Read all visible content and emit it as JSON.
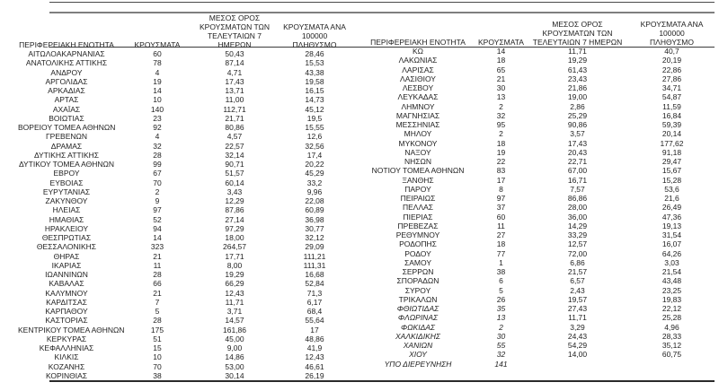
{
  "colors": {
    "text": "#1f1f1f",
    "rule_dark": "#3a3a3a",
    "rule_gray": "#7f7f7f"
  },
  "columns": [
    {
      "key": "region",
      "label": "ΠΕΡΙΦΕΡΕΙΑΚΗ ΕΝΟΤΗΤΑ"
    },
    {
      "key": "cases",
      "label": "ΚΡΟΥΣΜΑΤΑ"
    },
    {
      "key": "avg7",
      "label": "ΜΕΣΟΣ ΟΡΟΣ\nΚΡΟΥΣΜΑΤΩΝ ΤΩΝ\nΤΕΛΕΥΤΑΙΩΝ 7 ΗΜΕΡΩΝ"
    },
    {
      "key": "per100k",
      "label": "ΚΡΟΥΣΜΑΤΑ ΑΝΑ 100000\nΠΛΗΘΥΣΜΟ"
    }
  ],
  "tables": {
    "left": {
      "rows": [
        {
          "region": "ΑΙΤΩΛΟΑΚΑΡΝΑΝΙΑΣ",
          "cases": "60",
          "avg7": "50,43",
          "per100k": "28,46"
        },
        {
          "region": "ΑΝΑΤΟΛΙΚΗΣ ΑΤΤΙΚΗΣ",
          "cases": "78",
          "avg7": "87,14",
          "per100k": "15,53"
        },
        {
          "region": "ΑΝΔΡΟΥ",
          "cases": "4",
          "avg7": "4,71",
          "per100k": "43,38"
        },
        {
          "region": "ΑΡΓΟΛΙΔΑΣ",
          "cases": "19",
          "avg7": "17,43",
          "per100k": "19,58"
        },
        {
          "region": "ΑΡΚΑΔΙΑΣ",
          "cases": "14",
          "avg7": "13,71",
          "per100k": "16,15"
        },
        {
          "region": "ΑΡΤΑΣ",
          "cases": "10",
          "avg7": "11,00",
          "per100k": "14,73"
        },
        {
          "region": "ΑΧΑΪΑΣ",
          "cases": "140",
          "avg7": "112,71",
          "per100k": "45,12"
        },
        {
          "region": "ΒΟΙΩΤΙΑΣ",
          "cases": "23",
          "avg7": "21,71",
          "per100k": "19,5"
        },
        {
          "region": "ΒΟΡΕΙΟΥ ΤΟΜΕΑ ΑΘΗΝΩΝ",
          "cases": "92",
          "avg7": "80,86",
          "per100k": "15,55"
        },
        {
          "region": "ΓΡΕΒΕΝΩΝ",
          "cases": "4",
          "avg7": "4,57",
          "per100k": "12,6"
        },
        {
          "region": "ΔΡΑΜΑΣ",
          "cases": "32",
          "avg7": "22,57",
          "per100k": "32,56"
        },
        {
          "region": "ΔΥΤΙΚΗΣ ΑΤΤΙΚΗΣ",
          "cases": "28",
          "avg7": "32,14",
          "per100k": "17,4"
        },
        {
          "region": "ΔΥΤΙΚΟΥ ΤΟΜΕΑ ΑΘΗΝΩΝ",
          "cases": "99",
          "avg7": "90,71",
          "per100k": "20,22"
        },
        {
          "region": "ΕΒΡΟΥ",
          "cases": "67",
          "avg7": "51,57",
          "per100k": "45,29"
        },
        {
          "region": "ΕΥΒΟΙΑΣ",
          "cases": "70",
          "avg7": "60,14",
          "per100k": "33,2"
        },
        {
          "region": "ΕΥΡΥΤΑΝΙΑΣ",
          "cases": "2",
          "avg7": "3,43",
          "per100k": "9,96"
        },
        {
          "region": "ΖΑΚΥΝΘΟΥ",
          "cases": "9",
          "avg7": "12,29",
          "per100k": "22,08"
        },
        {
          "region": "ΗΛΕΙΑΣ",
          "cases": "97",
          "avg7": "87,86",
          "per100k": "60,89"
        },
        {
          "region": "ΗΜΑΘΙΑΣ",
          "cases": "52",
          "avg7": "27,14",
          "per100k": "36,98"
        },
        {
          "region": "ΗΡΑΚΛΕΙΟΥ",
          "cases": "94",
          "avg7": "97,29",
          "per100k": "30,77"
        },
        {
          "region": "ΘΕΣΠΡΩΤΙΑΣ",
          "cases": "14",
          "avg7": "18,00",
          "per100k": "32,12"
        },
        {
          "region": "ΘΕΣΣΑΛΟΝΙΚΗΣ",
          "cases": "323",
          "avg7": "264,57",
          "per100k": "29,09"
        },
        {
          "region": "ΘΗΡΑΣ",
          "cases": "21",
          "avg7": "17,71",
          "per100k": "111,21"
        },
        {
          "region": "ΙΚΑΡΙΑΣ",
          "cases": "11",
          "avg7": "8,00",
          "per100k": "111,31"
        },
        {
          "region": "ΙΩΑΝΝΙΝΩΝ",
          "cases": "28",
          "avg7": "19,29",
          "per100k": "16,68"
        },
        {
          "region": "ΚΑΒΑΛΑΣ",
          "cases": "66",
          "avg7": "66,29",
          "per100k": "52,84"
        },
        {
          "region": "ΚΑΛΥΜΝΟΥ",
          "cases": "21",
          "avg7": "12,43",
          "per100k": "71,3"
        },
        {
          "region": "ΚΑΡΔΙΤΣΑΣ",
          "cases": "7",
          "avg7": "11,71",
          "per100k": "6,17"
        },
        {
          "region": "ΚΑΡΠΑΘΟΥ",
          "cases": "5",
          "avg7": "3,71",
          "per100k": "68,4"
        },
        {
          "region": "ΚΑΣΤΟΡΙΑΣ",
          "cases": "28",
          "avg7": "14,57",
          "per100k": "55,64"
        },
        {
          "region": "ΚΕΝΤΡΙΚΟΥ ΤΟΜΕΑ ΑΘΗΝΩΝ",
          "cases": "175",
          "avg7": "161,86",
          "per100k": "17"
        },
        {
          "region": "ΚΕΡΚΥΡΑΣ",
          "cases": "51",
          "avg7": "45,00",
          "per100k": "48,86"
        },
        {
          "region": "ΚΕΦΑΛΛΗΝΙΑΣ",
          "cases": "15",
          "avg7": "9,00",
          "per100k": "41,9"
        },
        {
          "region": "ΚΙΛΚΙΣ",
          "cases": "10",
          "avg7": "14,86",
          "per100k": "12,43"
        },
        {
          "region": "ΚΟΖΑΝΗΣ",
          "cases": "70",
          "avg7": "53,00",
          "per100k": "46,61"
        },
        {
          "region": "ΚΟΡΙΝΘΙΑΣ",
          "cases": "38",
          "avg7": "30,14",
          "per100k": "26,19"
        }
      ]
    },
    "right": {
      "rows": [
        {
          "region": "ΚΩ",
          "cases": "14",
          "avg7": "11,71",
          "per100k": "40,7"
        },
        {
          "region": "ΛΑΚΩΝΙΑΣ",
          "cases": "18",
          "avg7": "19,29",
          "per100k": "20,19"
        },
        {
          "region": "ΛΑΡΙΣΑΣ",
          "cases": "65",
          "avg7": "61,43",
          "per100k": "22,86"
        },
        {
          "region": "ΛΑΣΙΘΙΟΥ",
          "cases": "21",
          "avg7": "23,43",
          "per100k": "27,86"
        },
        {
          "region": "ΛΕΣΒΟΥ",
          "cases": "30",
          "avg7": "21,86",
          "per100k": "34,71"
        },
        {
          "region": "ΛΕΥΚΑΔΑΣ",
          "cases": "13",
          "avg7": "19,00",
          "per100k": "54,87"
        },
        {
          "region": "ΛΗΜΝΟΥ",
          "cases": "2",
          "avg7": "2,86",
          "per100k": "11,59"
        },
        {
          "region": "ΜΑΓΝΗΣΙΑΣ",
          "cases": "32",
          "avg7": "25,29",
          "per100k": "16,84"
        },
        {
          "region": "ΜΕΣΣΗΝΙΑΣ",
          "cases": "95",
          "avg7": "90,86",
          "per100k": "59,39"
        },
        {
          "region": "ΜΗΛΟΥ",
          "cases": "2",
          "avg7": "3,57",
          "per100k": "20,14"
        },
        {
          "region": "ΜΥΚΟΝΟΥ",
          "cases": "18",
          "avg7": "17,43",
          "per100k": "177,62"
        },
        {
          "region": "ΝΑΞΟΥ",
          "cases": "19",
          "avg7": "20,43",
          "per100k": "91,18"
        },
        {
          "region": "ΝΗΣΩΝ",
          "cases": "22",
          "avg7": "22,71",
          "per100k": "29,47"
        },
        {
          "region": "ΝΟΤΙΟΥ ΤΟΜΕΑ ΑΘΗΝΩΝ",
          "cases": "83",
          "avg7": "67,00",
          "per100k": "15,67"
        },
        {
          "region": "ΞΑΝΘΗΣ",
          "cases": "17",
          "avg7": "16,71",
          "per100k": "15,28"
        },
        {
          "region": "ΠΑΡΟΥ",
          "cases": "8",
          "avg7": "7,57",
          "per100k": "53,6"
        },
        {
          "region": "ΠΕΙΡΑΙΩΣ",
          "cases": "97",
          "avg7": "86,86",
          "per100k": "21,6"
        },
        {
          "region": "ΠΕΛΛΑΣ",
          "cases": "37",
          "avg7": "28,00",
          "per100k": "26,49"
        },
        {
          "region": "ΠΙΕΡΙΑΣ",
          "cases": "60",
          "avg7": "36,00",
          "per100k": "47,36"
        },
        {
          "region": "ΠΡΕΒΕΖΑΣ",
          "cases": "11",
          "avg7": "14,29",
          "per100k": "19,13"
        },
        {
          "region": "ΡΕΘΥΜΝΟΥ",
          "cases": "27",
          "avg7": "33,29",
          "per100k": "31,54"
        },
        {
          "region": "ΡΟΔΟΠΗΣ",
          "cases": "18",
          "avg7": "12,57",
          "per100k": "16,07"
        },
        {
          "region": "ΡΟΔΟΥ",
          "cases": "77",
          "avg7": "72,00",
          "per100k": "64,26"
        },
        {
          "region": "ΣΑΜΟΥ",
          "cases": "1",
          "avg7": "6,86",
          "per100k": "3,03"
        },
        {
          "region": "ΣΕΡΡΩΝ",
          "cases": "38",
          "avg7": "21,57",
          "per100k": "21,54"
        },
        {
          "region": "ΣΠΟΡΑΔΩΝ",
          "cases": "6",
          "avg7": "6,57",
          "per100k": "43,48"
        },
        {
          "region": "ΣΥΡΟΥ",
          "cases": "5",
          "avg7": "2,43",
          "per100k": "23,25"
        },
        {
          "region": "ΤΡΙΚΑΛΩΝ",
          "cases": "26",
          "avg7": "19,57",
          "per100k": "19,83"
        },
        {
          "region": "ΦΘΙΩΤΙΔΑΣ",
          "cases": "35",
          "avg7": "27,43",
          "per100k": "22,12",
          "italic": true
        },
        {
          "region": "ΦΛΩΡΙΝΑΣ",
          "cases": "13",
          "avg7": "11,71",
          "per100k": "25,28",
          "italic": true
        },
        {
          "region": "ΦΩΚΙΔΑΣ",
          "cases": "2",
          "avg7": "3,29",
          "per100k": "4,96",
          "italic": true
        },
        {
          "region": "ΧΑΛΚΙΔΙΚΗΣ",
          "cases": "30",
          "avg7": "24,43",
          "per100k": "28,33",
          "italic": true
        },
        {
          "region": "ΧΑΝΙΩΝ",
          "cases": "55",
          "avg7": "54,29",
          "per100k": "35,12",
          "italic": true
        },
        {
          "region": "ΧΙΟΥ",
          "cases": "32",
          "avg7": "14,00",
          "per100k": "60,75",
          "italic": true
        },
        {
          "region": "ΥΠΟ ΔΙΕΡΕΥΝΗΣΗ",
          "cases": "141",
          "avg7": "",
          "per100k": "",
          "italic": true
        }
      ]
    }
  }
}
